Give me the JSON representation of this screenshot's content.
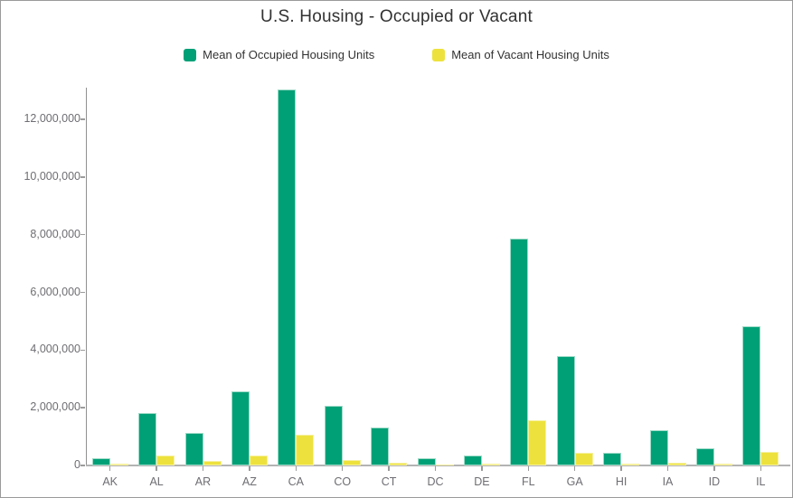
{
  "window": {
    "background": "#ffffff",
    "border_color": "#9a9a9a"
  },
  "header": {
    "title": "U.S. Housing - Occupied or Vacant"
  },
  "legend": {
    "items": [
      {
        "label": "Mean of Occupied Housing Units",
        "color": "#00A077"
      },
      {
        "label": "Mean of Vacant Housing Units",
        "color": "#EDE23D"
      }
    ]
  },
  "axes": {
    "y_axis_color": "#909090",
    "x_axis_color": "#b3b3b3",
    "tick_color": "#9b9b9b",
    "label_color": "#6e6e73"
  },
  "chart_data": {
    "type": "bar",
    "title": "U.S. Housing - Occupied or Vacant",
    "xlabel": "",
    "ylabel": "",
    "grid": false,
    "legend_position": "top",
    "categories": [
      "AK",
      "AL",
      "AR",
      "AZ",
      "CA",
      "CO",
      "CT",
      "DC",
      "DE",
      "FL",
      "GA",
      "HI",
      "IA",
      "ID",
      "IL"
    ],
    "series": [
      {
        "name": "Mean of Occupied Housing Units",
        "color": "#00A077",
        "values": [
          250000,
          1830000,
          1120000,
          2580000,
          13050000,
          2070000,
          1330000,
          240000,
          340000,
          7880000,
          3780000,
          430000,
          1230000,
          600000,
          4820000
        ]
      },
      {
        "name": "Mean of Vacant Housing Units",
        "color": "#EDE23D",
        "values": [
          70000,
          330000,
          150000,
          350000,
          1080000,
          190000,
          90000,
          35000,
          65000,
          1580000,
          450000,
          55000,
          95000,
          60000,
          470000
        ]
      }
    ],
    "ylim": [
      0,
      13100000
    ],
    "y_ticks": [
      0,
      2000000,
      4000000,
      6000000,
      8000000,
      10000000,
      12000000
    ]
  }
}
